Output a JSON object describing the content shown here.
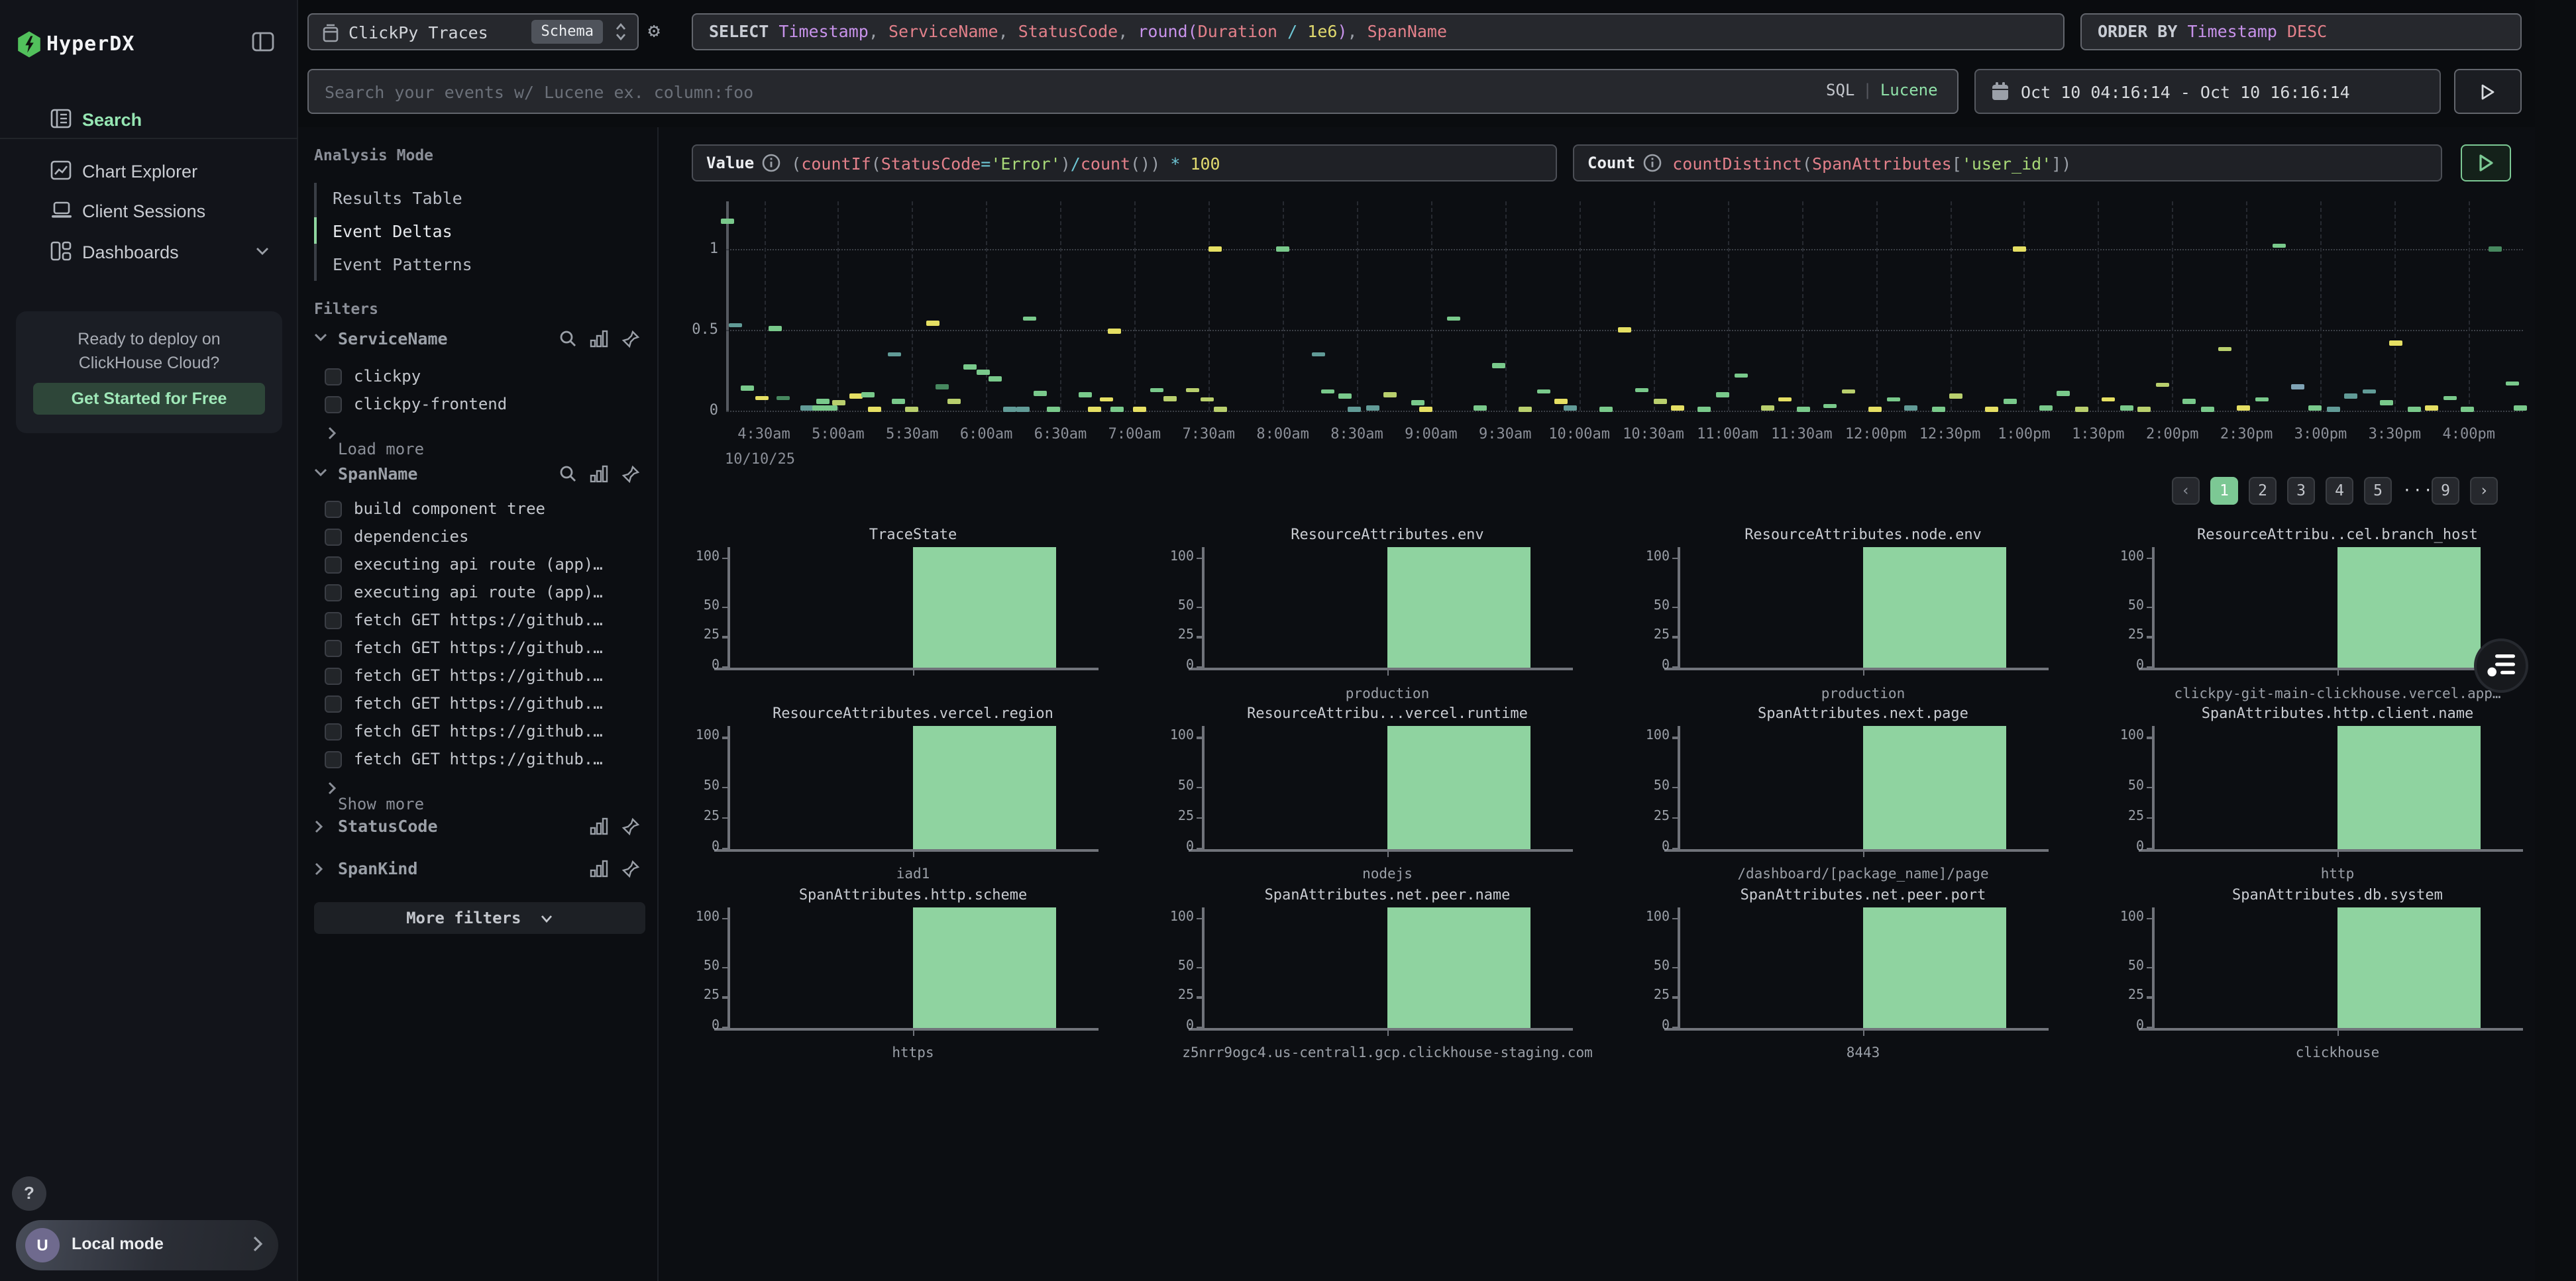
{
  "sidebar": {
    "logo_text": "HyperDX",
    "nav": [
      {
        "id": "search",
        "label": "Search",
        "active": true
      },
      {
        "id": "chart-explorer",
        "label": "Chart Explorer",
        "active": false
      },
      {
        "id": "client-sessions",
        "label": "Client Sessions",
        "active": false
      },
      {
        "id": "dashboards",
        "label": "Dashboards",
        "active": false,
        "chevron": true
      }
    ],
    "promo": {
      "line1": "Ready to deploy on",
      "line2": "ClickHouse Cloud?",
      "button": "Get Started for Free"
    },
    "help_label": "?",
    "user": {
      "initial": "U",
      "label": "Local mode"
    }
  },
  "topbar": {
    "source": {
      "name": "ClickPy Traces",
      "schema_badge": "Schema"
    },
    "select_tokens": [
      {
        "t": "SELECT ",
        "c": "kw"
      },
      {
        "t": "Timestamp",
        "c": "fld"
      },
      {
        "t": ", ",
        "c": "pun"
      },
      {
        "t": "ServiceName",
        "c": "fn"
      },
      {
        "t": ", ",
        "c": "pun"
      },
      {
        "t": "StatusCode",
        "c": "fn"
      },
      {
        "t": ", ",
        "c": "pun"
      },
      {
        "t": "round",
        "c": "fld"
      },
      {
        "t": "(",
        "c": "fld"
      },
      {
        "t": "Duration",
        "c": "fn"
      },
      {
        "t": " / ",
        "c": "op"
      },
      {
        "t": "1e6",
        "c": "num"
      },
      {
        "t": ")",
        "c": "fld"
      },
      {
        "t": ", ",
        "c": "pun"
      },
      {
        "t": "SpanName",
        "c": "fn"
      }
    ],
    "order_tokens": [
      {
        "t": "ORDER BY ",
        "c": "kw"
      },
      {
        "t": "Timestamp",
        "c": "fld"
      },
      {
        "t": " DESC",
        "c": "fn"
      }
    ],
    "search": {
      "placeholder": "Search your events w/ Lucene ex. column:foo",
      "mode_sql": "SQL",
      "mode_sep": "|",
      "mode_lucene": "Lucene"
    },
    "daterange": "Oct 10 04:16:14 - Oct 10 16:16:14"
  },
  "query_builder": {
    "value": {
      "label": "Value",
      "tokens": [
        {
          "t": "(",
          "c": "pun"
        },
        {
          "t": "countIf",
          "c": "fn"
        },
        {
          "t": "(",
          "c": "pun"
        },
        {
          "t": "StatusCode",
          "c": "fn"
        },
        {
          "t": "=",
          "c": "op"
        },
        {
          "t": "'Error'",
          "c": "str"
        },
        {
          "t": ")",
          "c": "pun"
        },
        {
          "t": "/",
          "c": "op"
        },
        {
          "t": "count",
          "c": "fn"
        },
        {
          "t": "())",
          "c": "pun"
        },
        {
          "t": " * ",
          "c": "op"
        },
        {
          "t": "100",
          "c": "num"
        }
      ]
    },
    "count": {
      "label": "Count",
      "tokens": [
        {
          "t": "countDistinct",
          "c": "fn"
        },
        {
          "t": "(",
          "c": "pun"
        },
        {
          "t": "SpanAttributes",
          "c": "fn"
        },
        {
          "t": "[",
          "c": "pun"
        },
        {
          "t": "'user_id'",
          "c": "str"
        },
        {
          "t": "])",
          "c": "pun"
        }
      ]
    }
  },
  "analysis": {
    "title": "Analysis Mode",
    "modes": [
      {
        "label": "Results Table",
        "active": false
      },
      {
        "label": "Event Deltas",
        "active": true
      },
      {
        "label": "Event Patterns",
        "active": false
      }
    ]
  },
  "filters": {
    "title": "Filters",
    "sections": [
      {
        "name": "ServiceName",
        "expanded": true,
        "has_search": true,
        "items": [
          "clickpy",
          "clickpy-frontend"
        ],
        "footer": "Load more"
      },
      {
        "name": "SpanName",
        "expanded": true,
        "has_search": true,
        "items": [
          "build component tree",
          "dependencies",
          "executing api route (app)…",
          "executing api route (app)…",
          "fetch GET https://github.…",
          "fetch GET https://github.…",
          "fetch GET https://github.…",
          "fetch GET https://github.…",
          "fetch GET https://github.…",
          "fetch GET https://github.…"
        ],
        "footer": "Show more"
      },
      {
        "name": "StatusCode",
        "expanded": false,
        "has_search": false,
        "items": [],
        "footer": ""
      },
      {
        "name": "SpanKind",
        "expanded": false,
        "has_search": false,
        "items": [],
        "footer": ""
      }
    ],
    "more_button": "More filters"
  },
  "pagination": {
    "prev": "‹",
    "next": "›",
    "pages": [
      "1",
      "2",
      "3",
      "4",
      "5",
      "…",
      "9"
    ],
    "active": "1"
  },
  "chart_data": {
    "main": {
      "type": "scatter",
      "marker": "horizontal-dash",
      "ylabel": "",
      "yticks": [
        "1",
        "0.5",
        "0"
      ],
      "ylim": [
        0,
        1.25
      ],
      "x_ticks": [
        "4:30am",
        "5:00am",
        "5:30am",
        "6:00am",
        "6:30am",
        "7:00am",
        "7:30am",
        "8:00am",
        "8:30am",
        "9:00am",
        "9:30am",
        "10:00am",
        "10:30am",
        "11:00am",
        "11:30am",
        "12:00pm",
        "12:30pm",
        "1:00pm",
        "1:30pm",
        "2:00pm",
        "2:30pm",
        "3:00pm",
        "3:30pm",
        "4:00pm"
      ],
      "date_label": "10/10/25",
      "colors": {
        "g": "#79c98b",
        "o": "#b9cf6d",
        "y": "#e5df63",
        "t": "#619b97",
        "d": "#47885f",
        "b": "#7fa3b5"
      },
      "points": [
        [
          0.001,
          1.17,
          "g"
        ],
        [
          0.005,
          0.53,
          "t"
        ],
        [
          0.012,
          0.14,
          "g"
        ],
        [
          0.02,
          0.08,
          "y"
        ],
        [
          0.027,
          0.51,
          "g"
        ],
        [
          0.032,
          0.08,
          "d"
        ],
        [
          0.045,
          0.02,
          "t"
        ],
        [
          0.052,
          0.02,
          "g"
        ],
        [
          0.058,
          0.02,
          "g"
        ],
        [
          0.054,
          0.06,
          "g"
        ],
        [
          0.063,
          0.05,
          "o"
        ],
        [
          0.072,
          0.09,
          "y"
        ],
        [
          0.079,
          0.1,
          "g"
        ],
        [
          0.083,
          0.01,
          "y"
        ],
        [
          0.094,
          0.35,
          "t"
        ],
        [
          0.096,
          0.06,
          "g"
        ],
        [
          0.103,
          0.01,
          "o"
        ],
        [
          0.115,
          0.54,
          "y"
        ],
        [
          0.12,
          0.15,
          "d"
        ],
        [
          0.127,
          0.06,
          "o"
        ],
        [
          0.136,
          0.27,
          "g"
        ],
        [
          0.143,
          0.24,
          "g"
        ],
        [
          0.15,
          0.2,
          "g"
        ],
        [
          0.158,
          0.01,
          "t"
        ],
        [
          0.165,
          0.01,
          "t"
        ],
        [
          0.169,
          0.57,
          "g"
        ],
        [
          0.175,
          0.11,
          "g"
        ],
        [
          0.182,
          0.01,
          "g"
        ],
        [
          0.2,
          0.1,
          "g"
        ],
        [
          0.205,
          0.01,
          "y"
        ],
        [
          0.212,
          0.07,
          "y"
        ],
        [
          0.218,
          0.01,
          "g"
        ],
        [
          0.216,
          0.49,
          "y"
        ],
        [
          0.23,
          0.01,
          "y"
        ],
        [
          0.24,
          0.13,
          "g"
        ],
        [
          0.247,
          0.075,
          "o"
        ],
        [
          0.26,
          0.13,
          "o"
        ],
        [
          0.268,
          0.07,
          "o"
        ],
        [
          0.275,
          0.01,
          "o"
        ],
        [
          0.272,
          1.0,
          "y"
        ],
        [
          0.31,
          1.0,
          "g"
        ],
        [
          0.33,
          0.35,
          "t"
        ],
        [
          0.335,
          0.12,
          "g"
        ],
        [
          0.345,
          0.09,
          "g"
        ],
        [
          0.35,
          0.01,
          "t"
        ],
        [
          0.36,
          0.02,
          "t"
        ],
        [
          0.37,
          0.1,
          "o"
        ],
        [
          0.385,
          0.05,
          "g"
        ],
        [
          0.39,
          0.01,
          "y"
        ],
        [
          0.405,
          0.57,
          "g"
        ],
        [
          0.42,
          0.02,
          "g"
        ],
        [
          0.43,
          0.28,
          "g"
        ],
        [
          0.445,
          0.01,
          "o"
        ],
        [
          0.455,
          0.12,
          "g"
        ],
        [
          0.465,
          0.06,
          "y"
        ],
        [
          0.47,
          0.02,
          "t"
        ],
        [
          0.49,
          0.01,
          "g"
        ],
        [
          0.5,
          0.5,
          "y"
        ],
        [
          0.51,
          0.13,
          "g"
        ],
        [
          0.52,
          0.06,
          "o"
        ],
        [
          0.53,
          0.02,
          "y"
        ],
        [
          0.545,
          0.01,
          "g"
        ],
        [
          0.555,
          0.1,
          "g"
        ],
        [
          0.565,
          0.22,
          "g"
        ],
        [
          0.58,
          0.02,
          "o"
        ],
        [
          0.59,
          0.07,
          "y"
        ],
        [
          0.6,
          0.01,
          "g"
        ],
        [
          0.615,
          0.03,
          "g"
        ],
        [
          0.625,
          0.12,
          "o"
        ],
        [
          0.64,
          0.01,
          "y"
        ],
        [
          0.65,
          0.07,
          "g"
        ],
        [
          0.66,
          0.02,
          "t"
        ],
        [
          0.675,
          0.01,
          "g"
        ],
        [
          0.685,
          0.09,
          "o"
        ],
        [
          0.705,
          0.01,
          "y"
        ],
        [
          0.715,
          0.06,
          "g"
        ],
        [
          0.72,
          1.0,
          "y"
        ],
        [
          0.735,
          0.02,
          "g"
        ],
        [
          0.745,
          0.11,
          "g"
        ],
        [
          0.755,
          0.01,
          "o"
        ],
        [
          0.77,
          0.07,
          "y"
        ],
        [
          0.78,
          0.02,
          "g"
        ],
        [
          0.79,
          0.01,
          "o"
        ],
        [
          0.8,
          0.16,
          "o"
        ],
        [
          0.815,
          0.06,
          "g"
        ],
        [
          0.825,
          0.01,
          "g"
        ],
        [
          0.835,
          0.38,
          "o"
        ],
        [
          0.845,
          0.02,
          "y"
        ],
        [
          0.855,
          0.07,
          "g"
        ],
        [
          0.865,
          1.02,
          "g"
        ],
        [
          0.875,
          0.15,
          "b"
        ],
        [
          0.885,
          0.02,
          "g"
        ],
        [
          0.895,
          0.01,
          "t"
        ],
        [
          0.905,
          0.09,
          "t"
        ],
        [
          0.915,
          0.12,
          "t"
        ],
        [
          0.925,
          0.05,
          "g"
        ],
        [
          0.93,
          0.42,
          "y"
        ],
        [
          0.94,
          0.01,
          "g"
        ],
        [
          0.95,
          0.02,
          "y"
        ],
        [
          0.96,
          0.08,
          "g"
        ],
        [
          0.97,
          0.01,
          "g"
        ],
        [
          0.985,
          1.0,
          "d"
        ],
        [
          0.995,
          0.17,
          "g"
        ],
        [
          0.999,
          0.02,
          "g"
        ]
      ]
    },
    "facets": {
      "type": "bar",
      "yticks": [
        "100",
        "50",
        "25",
        "0"
      ],
      "bar_value": 100,
      "bar_color": "#8fd3a0",
      "charts": [
        {
          "title": "TraceState",
          "category": ""
        },
        {
          "title": "ResourceAttributes.env",
          "category": "production"
        },
        {
          "title": "ResourceAttributes.node.env",
          "category": "production"
        },
        {
          "title": "ResourceAttribu..cel.branch_host",
          "category": "clickpy-git-main-clickhouse.vercel.app…"
        },
        {
          "title": "ResourceAttributes.vercel.region",
          "category": "iad1"
        },
        {
          "title": "ResourceAttribu...vercel.runtime",
          "category": "nodejs"
        },
        {
          "title": "SpanAttributes.next.page",
          "category": "/dashboard/[package_name]/page"
        },
        {
          "title": "SpanAttributes.http.client.name",
          "category": "http"
        },
        {
          "title": "SpanAttributes.http.scheme",
          "category": "https"
        },
        {
          "title": "SpanAttributes.net.peer.name",
          "category": "z5nrr9ogc4.us-central1.gcp.clickhouse-staging.com"
        },
        {
          "title": "SpanAttributes.net.peer.port",
          "category": "8443"
        },
        {
          "title": "SpanAttributes.db.system",
          "category": "clickhouse"
        }
      ]
    }
  }
}
